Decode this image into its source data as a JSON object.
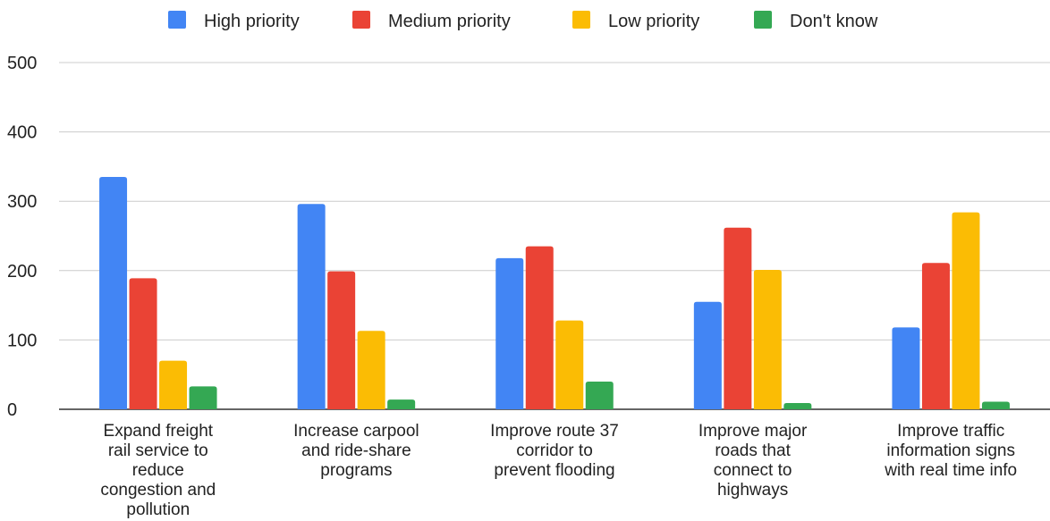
{
  "chart_data": {
    "type": "bar",
    "title": "",
    "xlabel": "",
    "ylabel": "",
    "ylim": [
      0,
      500
    ],
    "yticks": [
      0,
      100,
      200,
      300,
      400,
      500
    ],
    "grid": true,
    "legend_position": "top",
    "categories": [
      [
        "Expand freight",
        "rail service to",
        "reduce",
        "congestion and",
        "pollution"
      ],
      [
        "Increase carpool",
        "and ride-share",
        "programs"
      ],
      [
        "Improve route 37",
        "corridor to",
        "prevent flooding"
      ],
      [
        "Improve major",
        "roads that",
        "connect to",
        "highways"
      ],
      [
        "Improve traffic",
        "information signs",
        "with real time info"
      ]
    ],
    "series": [
      {
        "name": "High priority",
        "color": "#4285f4",
        "values": [
          335,
          296,
          218,
          155,
          118
        ]
      },
      {
        "name": "Medium priority",
        "color": "#ea4335",
        "values": [
          189,
          199,
          235,
          262,
          211
        ]
      },
      {
        "name": "Low priority",
        "color": "#fbbc04",
        "values": [
          70,
          113,
          128,
          201,
          284
        ]
      },
      {
        "name": "Don't know",
        "color": "#34a853",
        "values": [
          33,
          14,
          40,
          9,
          11
        ]
      }
    ]
  }
}
